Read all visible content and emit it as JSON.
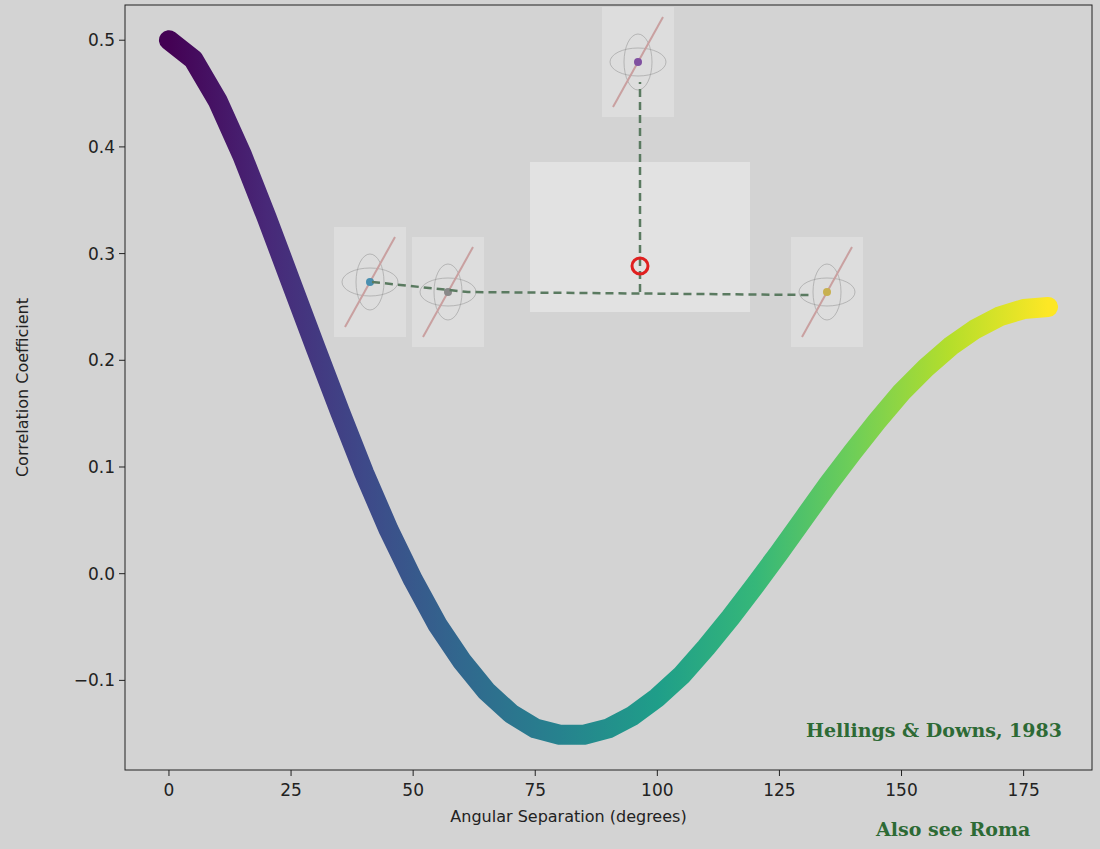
{
  "chart_data": {
    "type": "line",
    "x_label": "Angular Separation (degrees)",
    "y_label": "Correlation Coefficient",
    "annotations": [
      "Hellings & Downs, 1983",
      "Also see Roma"
    ],
    "x": [
      0,
      5,
      10,
      15,
      20,
      25,
      30,
      35,
      40,
      45,
      50,
      55,
      60,
      65,
      70,
      75,
      80,
      85,
      90,
      95,
      100,
      105,
      110,
      115,
      120,
      125,
      130,
      135,
      140,
      145,
      150,
      155,
      160,
      165,
      170,
      175,
      180
    ],
    "values": [
      0.5,
      0.482,
      0.443,
      0.392,
      0.334,
      0.273,
      0.212,
      0.152,
      0.094,
      0.041,
      -0.006,
      -0.048,
      -0.082,
      -0.11,
      -0.131,
      -0.145,
      -0.151,
      -0.151,
      -0.145,
      -0.133,
      -0.116,
      -0.095,
      -0.069,
      -0.041,
      -0.011,
      0.02,
      0.052,
      0.084,
      0.114,
      0.143,
      0.17,
      0.193,
      0.213,
      0.229,
      0.241,
      0.248,
      0.25
    ],
    "xlim": [
      -9,
      189
    ],
    "ylim": [
      -0.184,
      0.533
    ],
    "xticks": [
      0,
      25,
      50,
      75,
      100,
      125,
      150,
      175
    ],
    "yticks": [
      {
        "value": -0.1,
        "label": "−0.1"
      },
      {
        "value": 0,
        "label": "0.0"
      },
      0.1,
      0.2,
      0.3,
      0.4,
      0.5
    ],
    "grid": false
  }
}
